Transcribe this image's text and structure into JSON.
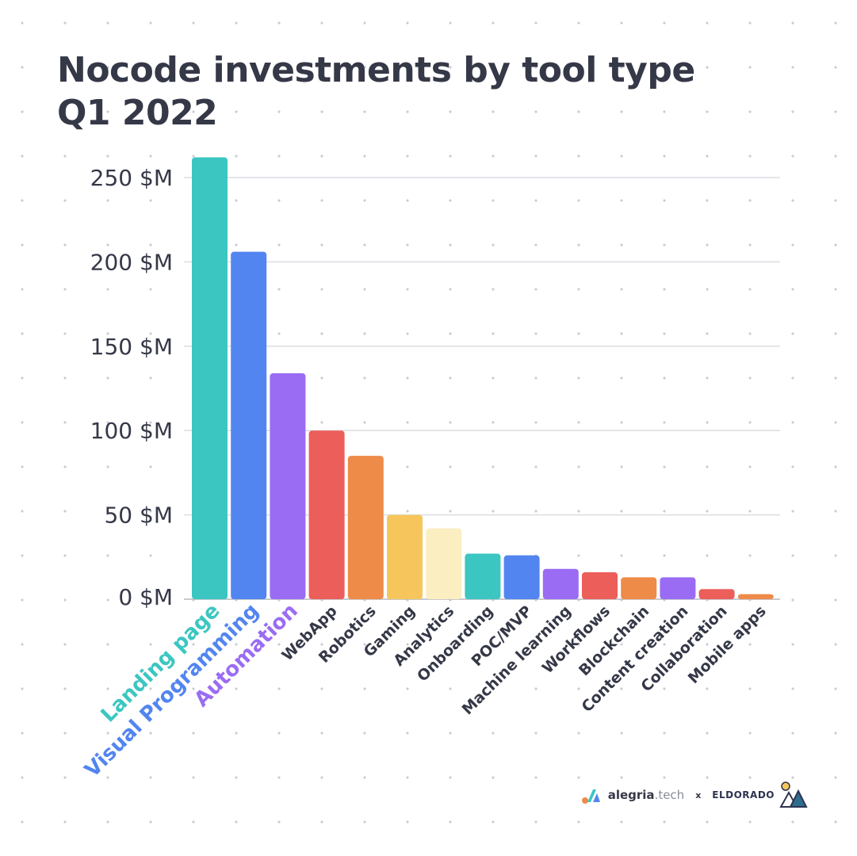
{
  "title_lines": [
    "Nocode investments by tool type",
    "Q1 2022"
  ],
  "chart_data": {
    "type": "bar",
    "title": "Nocode investments by tool type Q1 2022",
    "xlabel": "",
    "ylabel": "",
    "ylim": [
      0,
      260
    ],
    "yticks": [
      0,
      50,
      100,
      150,
      200,
      250
    ],
    "ytick_labels": [
      "0 $M",
      "50 $M",
      "100 $M",
      "150 $M",
      "200 $M",
      "250 $M"
    ],
    "grid": true,
    "categories": [
      "Landing page",
      "Visual Programming",
      "Automation",
      "WebApp",
      "Robotics",
      "Gaming",
      "Analytics",
      "Onboarding",
      "POC/MVP",
      "Machine learning",
      "Workflows",
      "Blockchain",
      "Content creation",
      "Collaboration",
      "Mobile apps"
    ],
    "values": [
      262,
      206,
      134,
      100,
      85,
      50,
      42,
      27,
      26,
      18,
      16,
      13,
      13,
      6,
      3
    ],
    "bar_colors": [
      "#3cc6c1",
      "#5285f0",
      "#9a6cf3",
      "#ec5e5a",
      "#ee8b48",
      "#f6c65d",
      "#fbeec1",
      "#3cc6c1",
      "#5285f0",
      "#9a6cf3",
      "#ec5e5a",
      "#ee8b48",
      "#9a6cf3",
      "#ec5e5a",
      "#ee8b48"
    ],
    "label_colors": [
      "#3cc6c1",
      "#5285f0",
      "#9a6cf3",
      "#353847",
      "#353847",
      "#353847",
      "#353847",
      "#353847",
      "#353847",
      "#353847",
      "#353847",
      "#353847",
      "#353847",
      "#353847",
      "#353847"
    ]
  },
  "colors": {
    "text": "#353847",
    "grid": "#dcdee3",
    "axis": "#b5b8c0"
  },
  "footer": {
    "brand1_main": "alegria",
    "brand1_suffix": ".tech",
    "separator": "x",
    "brand2": "ELDORADO"
  }
}
